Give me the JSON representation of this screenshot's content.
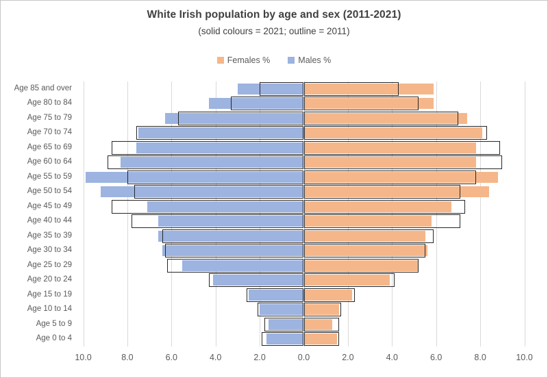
{
  "chart_data": {
    "type": "bar",
    "variant": "population-pyramid",
    "title": "White Irish population by age and sex (2011-2021)",
    "subtitle": "(solid colours = 2021; outline = 2011)",
    "legend": [
      {
        "label": "Females %",
        "color": "#f5b78a"
      },
      {
        "label": "Males %",
        "color": "#9db3e0"
      }
    ],
    "categories": [
      "Age 85 and over",
      "Age 80 to 84",
      "Age 75 to 79",
      "Age 70 to 74",
      "Age 65 to 69",
      "Age 60 to 64",
      "Age 55 to 59",
      "Age 50 to 54",
      "Age 45 to 49",
      "Age 40 to 44",
      "Age 35 to 39",
      "Age 30 to 34",
      "Age 25 to 29",
      "Age 20 to 24",
      "Age 15 to 19",
      "Age 10 to 14",
      "Age 5 to 9",
      "Age 0 to 4"
    ],
    "series": [
      {
        "name": "Males % 2021",
        "side": "left",
        "style": "solid",
        "values": [
          3.0,
          4.3,
          6.3,
          7.5,
          7.6,
          8.3,
          9.9,
          9.2,
          7.1,
          6.6,
          6.6,
          6.4,
          5.5,
          4.1,
          2.5,
          2.0,
          1.6,
          1.7
        ]
      },
      {
        "name": "Males % 2011",
        "side": "left",
        "style": "outline",
        "values": [
          2.0,
          3.3,
          5.7,
          7.6,
          8.7,
          8.9,
          8.0,
          7.7,
          8.7,
          7.8,
          6.4,
          6.3,
          6.2,
          4.3,
          2.6,
          2.1,
          1.8,
          1.9
        ]
      },
      {
        "name": "Females % 2021",
        "side": "right",
        "style": "solid",
        "values": [
          5.9,
          5.9,
          7.4,
          8.1,
          7.8,
          7.8,
          8.8,
          8.4,
          6.7,
          5.8,
          5.5,
          5.6,
          5.2,
          3.9,
          2.2,
          1.6,
          1.3,
          1.5
        ]
      },
      {
        "name": "Females % 2011",
        "side": "right",
        "style": "outline",
        "values": [
          4.3,
          5.2,
          7.0,
          8.3,
          8.9,
          9.0,
          7.8,
          7.1,
          7.3,
          7.1,
          5.9,
          5.5,
          5.2,
          4.1,
          2.3,
          1.7,
          1.6,
          1.6
        ]
      }
    ],
    "x_ticks": [
      "10.0",
      "8.0",
      "6.0",
      "4.0",
      "2.0",
      "0.0",
      "2.0",
      "4.0",
      "6.0",
      "8.0",
      "10.0"
    ],
    "x_tick_values": [
      -10,
      -8,
      -6,
      -4,
      -2,
      0,
      2,
      4,
      6,
      8,
      10
    ],
    "axis_range_per_side": 10,
    "grid": true,
    "legend_position": "top"
  }
}
